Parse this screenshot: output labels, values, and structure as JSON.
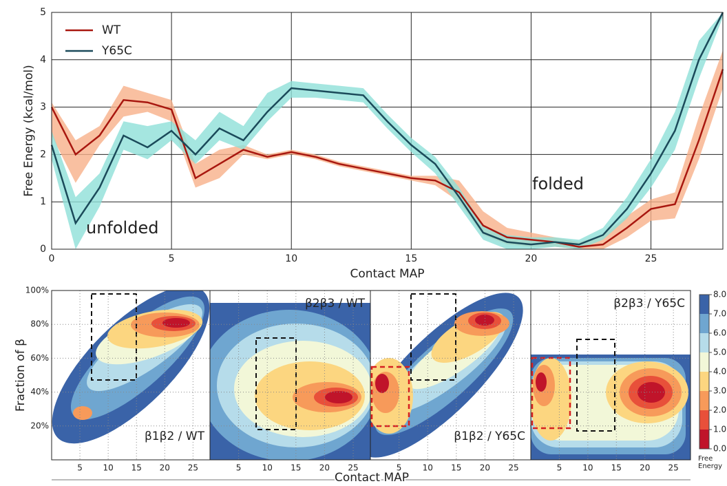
{
  "chart_data": [
    {
      "type": "line",
      "ylabel": "Free Energy (kcal/mol)",
      "xlabel": "Contact MAP",
      "annotations": [
        "unfolded",
        "folded"
      ],
      "x": [
        0,
        1,
        2,
        3,
        4,
        5,
        6,
        7,
        8,
        9,
        10,
        11,
        12,
        13,
        14,
        15,
        16,
        17,
        18,
        19,
        20,
        21,
        22,
        23,
        24,
        25,
        26,
        27,
        28
      ],
      "xlim": [
        0,
        28
      ],
      "ylim": [
        0,
        5
      ],
      "xticks": [
        0,
        5,
        10,
        15,
        20,
        25
      ],
      "yticks": [
        0,
        1,
        2,
        3,
        4,
        5
      ],
      "grid": true,
      "legend": "upper left",
      "series": [
        {
          "name": "WT",
          "color": "#a8170f",
          "band_color": "#f7b089",
          "values": [
            3.0,
            2.0,
            2.4,
            3.15,
            3.1,
            2.95,
            1.5,
            1.8,
            2.1,
            1.95,
            2.05,
            1.95,
            1.8,
            1.7,
            1.6,
            1.5,
            1.45,
            1.2,
            0.5,
            0.25,
            0.2,
            0.15,
            0.05,
            0.1,
            0.45,
            0.85,
            0.95,
            2.3,
            3.8
          ],
          "lower": [
            2.4,
            1.4,
            2.2,
            2.8,
            2.9,
            2.7,
            1.3,
            1.5,
            2.0,
            1.9,
            2.0,
            1.9,
            1.75,
            1.65,
            1.55,
            1.45,
            1.35,
            1.0,
            0.3,
            0.1,
            0.05,
            0.05,
            0.0,
            0.0,
            0.25,
            0.6,
            0.65,
            1.9,
            3.4
          ],
          "upper": [
            3.1,
            2.3,
            2.6,
            3.45,
            3.3,
            3.15,
            1.8,
            2.1,
            2.2,
            2.0,
            2.1,
            2.0,
            1.85,
            1.75,
            1.65,
            1.55,
            1.55,
            1.45,
            0.8,
            0.45,
            0.35,
            0.25,
            0.15,
            0.3,
            0.7,
            1.05,
            1.2,
            2.8,
            4.2
          ]
        },
        {
          "name": "Y65C",
          "color": "#1b4a5a",
          "band_color": "#8ee0d8",
          "values": [
            2.2,
            0.55,
            1.3,
            2.4,
            2.15,
            2.5,
            2.0,
            2.55,
            2.3,
            2.9,
            3.4,
            3.35,
            3.3,
            3.25,
            2.7,
            2.2,
            1.8,
            1.1,
            0.35,
            0.15,
            0.1,
            0.15,
            0.1,
            0.3,
            0.85,
            1.6,
            2.5,
            4.0,
            5.0
          ],
          "lower": [
            1.9,
            0.0,
            0.9,
            2.1,
            1.9,
            2.3,
            1.8,
            2.3,
            2.1,
            2.7,
            3.2,
            3.2,
            3.15,
            3.1,
            2.55,
            2.05,
            1.6,
            0.9,
            0.2,
            0.0,
            0.0,
            0.05,
            0.0,
            0.2,
            0.65,
            1.3,
            2.1,
            3.6,
            4.9
          ],
          "upper": [
            2.5,
            1.1,
            1.6,
            2.7,
            2.6,
            2.7,
            2.3,
            2.9,
            2.6,
            3.3,
            3.55,
            3.5,
            3.45,
            3.4,
            2.85,
            2.35,
            1.95,
            1.3,
            0.5,
            0.3,
            0.25,
            0.25,
            0.2,
            0.45,
            1.1,
            1.9,
            2.9,
            4.4,
            5.0
          ]
        }
      ]
    },
    {
      "type": "contour",
      "ylabel": "Fraction of β",
      "xlabel": "Contact MAP",
      "panels": [
        "β1β2 / WT",
        "β2β3 / WT",
        "β1β2 / Y65C",
        "β2β3 / Y65C"
      ],
      "xlim": [
        0,
        28
      ],
      "ylim": [
        0,
        100
      ],
      "xticks": [
        5,
        10,
        15,
        20,
        25
      ],
      "yticks": [
        {
          "value": 20,
          "label": "20%"
        },
        {
          "value": 40,
          "label": "40%"
        },
        {
          "value": 60,
          "label": "60%"
        },
        {
          "value": 80,
          "label": "80%"
        },
        {
          "value": 100,
          "label": "100%"
        }
      ],
      "colorbar": {
        "label": [
          "Free",
          "Energy"
        ],
        "colors": [
          "#c0142a",
          "#e8503a",
          "#f79a5a",
          "#fcd680",
          "#f2f7d8",
          "#b6dcea",
          "#6fa6d0",
          "#3a63a8"
        ],
        "ticks": [
          {
            "value": 0,
            "label": "0.0"
          },
          {
            "value": 1,
            "label": "1.0"
          },
          {
            "value": 2,
            "label": "2.0"
          },
          {
            "value": 3,
            "label": "3.0"
          },
          {
            "value": 4,
            "label": "4.0"
          },
          {
            "value": 5,
            "label": "5.0"
          },
          {
            "value": 6,
            "label": "6.0"
          },
          {
            "value": 7,
            "label": "7.0"
          },
          {
            "value": 8,
            "label": "8.0"
          }
        ]
      }
    }
  ]
}
